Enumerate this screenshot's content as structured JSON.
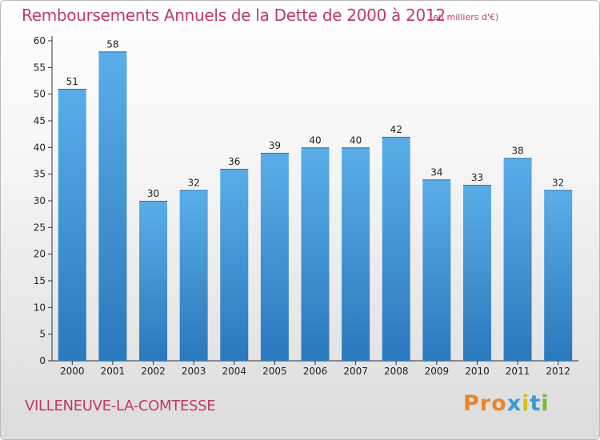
{
  "header": {
    "title": "Remboursements Annuels de la Dette de 2000 à 2012",
    "unit": "(en milliers d'€)"
  },
  "footer": {
    "commune": "VILLENEUVE-LA-COMTESSE",
    "brand": "Proxiti"
  },
  "colors": {
    "title": "#c0396a",
    "bar_top": "#5aaee8",
    "bar_bottom": "#2a78bd",
    "brand_letters": [
      "#e8862a",
      "#e8862a",
      "#e8862a",
      "#3a9ad9",
      "#d4c21a",
      "#3a9ad9",
      "#7bb83a"
    ]
  },
  "chart_data": {
    "type": "bar",
    "categories": [
      "2000",
      "2001",
      "2002",
      "2003",
      "2004",
      "2005",
      "2006",
      "2007",
      "2008",
      "2009",
      "2010",
      "2011",
      "2012"
    ],
    "values": [
      51,
      58,
      30,
      32,
      36,
      39,
      40,
      40,
      42,
      34,
      33,
      38,
      32
    ],
    "ylim": [
      0,
      60
    ],
    "yticks": [
      0,
      5,
      10,
      15,
      20,
      25,
      30,
      35,
      40,
      45,
      50,
      55,
      60
    ],
    "grid": false,
    "data_labels": true
  }
}
